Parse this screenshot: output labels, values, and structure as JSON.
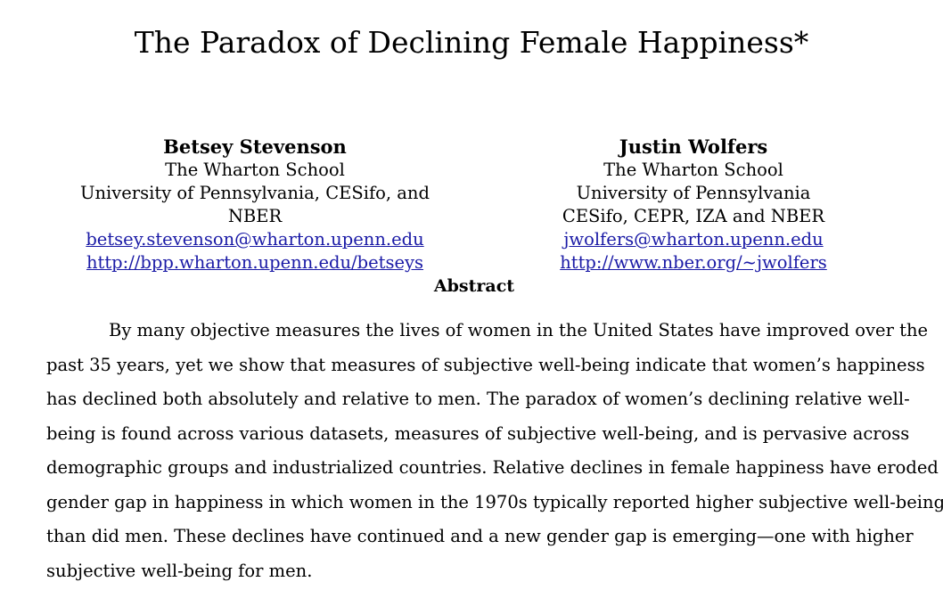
{
  "title": "The Paradox of Declining Female Happiness*",
  "authors": [
    {
      "name": "Betsey Stevenson",
      "lines": [
        "The Wharton School",
        "University of Pennsylvania, CESifo, and NBER"
      ],
      "email": "betsey.stevenson@wharton.upenn.edu",
      "url": "http://bpp.wharton.upenn.edu/betseys"
    },
    {
      "name": "Justin Wolfers",
      "lines": [
        "The Wharton School",
        "University of Pennsylvania",
        "CESifo, CEPR, IZA and NBER"
      ],
      "email": "jwolfers@wharton.upenn.edu",
      "url": "http://www.nber.org/~jwolfers"
    }
  ],
  "abstract": {
    "heading": "Abstract",
    "lines": [
      "By many objective measures the lives of women in the United States have improved over the",
      "past 35 years, yet we show that measures of subjective well-being indicate that women’s happiness",
      "has declined both absolutely and relative to men.  The paradox of women’s declining relative well-",
      "being is found across various datasets, measures of subjective well-being, and is pervasive across",
      "demographic groups and industrialized countries.  Relative declines in female happiness have eroded a",
      "gender gap in happiness in which women in the 1970s typically reported higher subjective well-being",
      "than did men.  These declines have continued and a new gender gap is emerging—one with higher",
      "subjective well-being for men."
    ]
  },
  "colors": {
    "link": "#1a1aa6",
    "text": "#000000",
    "background": "#ffffff"
  }
}
